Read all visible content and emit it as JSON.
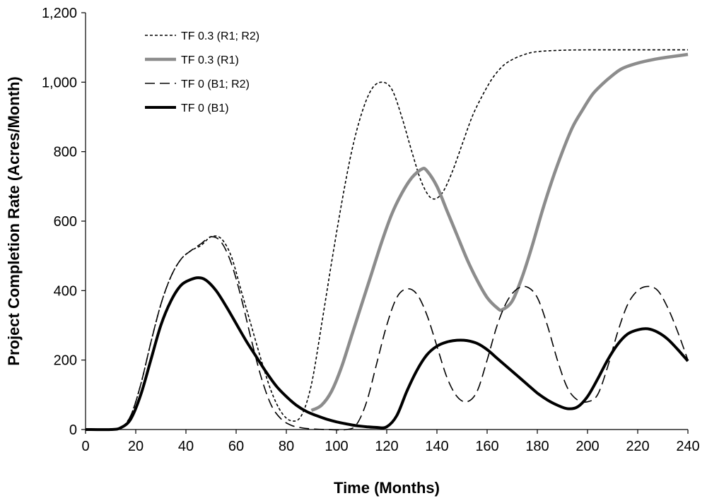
{
  "chart_data": {
    "type": "line",
    "title": "",
    "xlabel": "Time (Months)",
    "ylabel": "Project Completion Rate (Acres/Month)",
    "xlim": [
      0,
      240
    ],
    "ylim": [
      0,
      1200
    ],
    "xticks": [
      0,
      20,
      40,
      60,
      80,
      100,
      120,
      140,
      160,
      180,
      200,
      220,
      240
    ],
    "yticks": [
      0,
      200,
      400,
      600,
      800,
      1000,
      1200
    ],
    "xtick_labels": [
      "0",
      "20",
      "40",
      "60",
      "80",
      "100",
      "120",
      "140",
      "160",
      "180",
      "200",
      "220",
      "240"
    ],
    "ytick_labels": [
      "0",
      "200",
      "400",
      "600",
      "800",
      "1,000",
      "1,200"
    ],
    "grid": false,
    "legend_position": "top-left",
    "series": [
      {
        "name": "TF 0.3 (R1; R2)",
        "style": "dotted",
        "color": "#000000",
        "points": [
          [
            0,
            0
          ],
          [
            10,
            0
          ],
          [
            14,
            5
          ],
          [
            18,
            40
          ],
          [
            22,
            130
          ],
          [
            26,
            250
          ],
          [
            30,
            360
          ],
          [
            34,
            440
          ],
          [
            38,
            490
          ],
          [
            42,
            515
          ],
          [
            46,
            530
          ],
          [
            50,
            555
          ],
          [
            54,
            550
          ],
          [
            58,
            500
          ],
          [
            62,
            400
          ],
          [
            66,
            300
          ],
          [
            70,
            200
          ],
          [
            74,
            110
          ],
          [
            78,
            50
          ],
          [
            82,
            25
          ],
          [
            86,
            40
          ],
          [
            90,
            130
          ],
          [
            94,
            300
          ],
          [
            98,
            480
          ],
          [
            102,
            650
          ],
          [
            106,
            800
          ],
          [
            110,
            910
          ],
          [
            114,
            980
          ],
          [
            118,
            1000
          ],
          [
            122,
            980
          ],
          [
            126,
            900
          ],
          [
            130,
            800
          ],
          [
            134,
            710
          ],
          [
            138,
            665
          ],
          [
            142,
            680
          ],
          [
            146,
            740
          ],
          [
            150,
            820
          ],
          [
            154,
            900
          ],
          [
            158,
            960
          ],
          [
            162,
            1010
          ],
          [
            166,
            1045
          ],
          [
            170,
            1065
          ],
          [
            175,
            1080
          ],
          [
            180,
            1088
          ],
          [
            190,
            1092
          ],
          [
            200,
            1093
          ],
          [
            220,
            1093
          ],
          [
            240,
            1093
          ]
        ]
      },
      {
        "name": "TF 0.3 (R1)",
        "style": "thick-gray",
        "color": "#8c8c8c",
        "points": [
          [
            90,
            55
          ],
          [
            94,
            70
          ],
          [
            98,
            110
          ],
          [
            102,
            180
          ],
          [
            106,
            270
          ],
          [
            110,
            360
          ],
          [
            114,
            450
          ],
          [
            118,
            540
          ],
          [
            122,
            620
          ],
          [
            126,
            680
          ],
          [
            130,
            725
          ],
          [
            134,
            750
          ],
          [
            136,
            745
          ],
          [
            140,
            700
          ],
          [
            144,
            630
          ],
          [
            148,
            560
          ],
          [
            152,
            490
          ],
          [
            156,
            430
          ],
          [
            160,
            380
          ],
          [
            164,
            350
          ],
          [
            166,
            345
          ],
          [
            170,
            370
          ],
          [
            174,
            440
          ],
          [
            178,
            530
          ],
          [
            182,
            630
          ],
          [
            186,
            720
          ],
          [
            190,
            800
          ],
          [
            194,
            870
          ],
          [
            198,
            920
          ],
          [
            202,
            965
          ],
          [
            206,
            995
          ],
          [
            210,
            1020
          ],
          [
            214,
            1040
          ],
          [
            220,
            1055
          ],
          [
            226,
            1065
          ],
          [
            232,
            1072
          ],
          [
            240,
            1080
          ]
        ]
      },
      {
        "name": "TF 0 (B1; R2)",
        "style": "dashed",
        "color": "#000000",
        "points": [
          [
            0,
            0
          ],
          [
            10,
            0
          ],
          [
            14,
            5
          ],
          [
            18,
            40
          ],
          [
            22,
            130
          ],
          [
            26,
            250
          ],
          [
            30,
            360
          ],
          [
            34,
            440
          ],
          [
            38,
            490
          ],
          [
            42,
            515
          ],
          [
            46,
            535
          ],
          [
            50,
            555
          ],
          [
            54,
            540
          ],
          [
            58,
            480
          ],
          [
            62,
            380
          ],
          [
            66,
            260
          ],
          [
            70,
            150
          ],
          [
            74,
            70
          ],
          [
            78,
            30
          ],
          [
            82,
            12
          ],
          [
            86,
            5
          ],
          [
            90,
            2
          ],
          [
            96,
            0
          ],
          [
            104,
            0
          ],
          [
            108,
            15
          ],
          [
            112,
            80
          ],
          [
            116,
            190
          ],
          [
            120,
            300
          ],
          [
            124,
            380
          ],
          [
            128,
            405
          ],
          [
            132,
            390
          ],
          [
            136,
            330
          ],
          [
            140,
            240
          ],
          [
            144,
            150
          ],
          [
            148,
            95
          ],
          [
            152,
            80
          ],
          [
            156,
            110
          ],
          [
            160,
            200
          ],
          [
            164,
            300
          ],
          [
            168,
            370
          ],
          [
            172,
            405
          ],
          [
            176,
            410
          ],
          [
            180,
            380
          ],
          [
            184,
            300
          ],
          [
            188,
            200
          ],
          [
            192,
            120
          ],
          [
            196,
            85
          ],
          [
            200,
            80
          ],
          [
            204,
            100
          ],
          [
            208,
            180
          ],
          [
            212,
            280
          ],
          [
            216,
            360
          ],
          [
            220,
            400
          ],
          [
            224,
            412
          ],
          [
            228,
            400
          ],
          [
            232,
            350
          ],
          [
            236,
            280
          ],
          [
            240,
            200
          ]
        ]
      },
      {
        "name": "TF 0 (B1)",
        "style": "thick-black",
        "color": "#000000",
        "points": [
          [
            0,
            0
          ],
          [
            10,
            0
          ],
          [
            14,
            5
          ],
          [
            18,
            30
          ],
          [
            22,
            100
          ],
          [
            26,
            200
          ],
          [
            30,
            300
          ],
          [
            34,
            370
          ],
          [
            38,
            415
          ],
          [
            42,
            432
          ],
          [
            45,
            437
          ],
          [
            48,
            430
          ],
          [
            52,
            400
          ],
          [
            56,
            355
          ],
          [
            60,
            305
          ],
          [
            64,
            255
          ],
          [
            68,
            210
          ],
          [
            72,
            165
          ],
          [
            76,
            125
          ],
          [
            80,
            95
          ],
          [
            84,
            70
          ],
          [
            88,
            52
          ],
          [
            92,
            40
          ],
          [
            96,
            30
          ],
          [
            100,
            22
          ],
          [
            104,
            16
          ],
          [
            108,
            11
          ],
          [
            112,
            8
          ],
          [
            116,
            6
          ],
          [
            120,
            8
          ],
          [
            124,
            40
          ],
          [
            128,
            110
          ],
          [
            132,
            170
          ],
          [
            136,
            215
          ],
          [
            140,
            240
          ],
          [
            144,
            252
          ],
          [
            148,
            257
          ],
          [
            152,
            256
          ],
          [
            156,
            248
          ],
          [
            160,
            230
          ],
          [
            164,
            205
          ],
          [
            168,
            180
          ],
          [
            172,
            155
          ],
          [
            176,
            130
          ],
          [
            180,
            105
          ],
          [
            184,
            85
          ],
          [
            188,
            70
          ],
          [
            192,
            60
          ],
          [
            196,
            65
          ],
          [
            200,
            95
          ],
          [
            204,
            145
          ],
          [
            208,
            200
          ],
          [
            212,
            245
          ],
          [
            216,
            275
          ],
          [
            220,
            287
          ],
          [
            224,
            290
          ],
          [
            228,
            280
          ],
          [
            232,
            260
          ],
          [
            236,
            230
          ],
          [
            240,
            197
          ]
        ]
      }
    ]
  }
}
